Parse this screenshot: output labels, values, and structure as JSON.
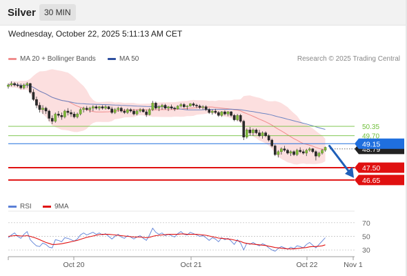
{
  "header": {
    "symbol": "Silver",
    "timeframe": "30 MIN",
    "datetime": "Wednesday, October 22, 2025 5:11:13 AM CET"
  },
  "legend": {
    "items": [
      {
        "label": "MA 20 + Bollinger Bands",
        "color": "#f08c8c"
      },
      {
        "label": "MA 50",
        "color": "#2d4e9e"
      }
    ],
    "credit": "Research © 2025 Trading Central"
  },
  "rsi_legend": {
    "items": [
      {
        "label": "RSI",
        "color": "#5b7fd6"
      },
      {
        "label": "9MA",
        "color": "#e01010"
      }
    ]
  },
  "chart_data": [
    {
      "type": "candlestick",
      "title": "Silver",
      "ylim": [
        45.5,
        54.3
      ],
      "x_ticks": [
        "Oct 20",
        "Oct 21",
        "Oct 22",
        "Nov 1"
      ],
      "current_price": 49.15,
      "levels": [
        {
          "value": 50.35,
          "label": "50.35",
          "kind": "resistance",
          "color": "#6fbf3a"
        },
        {
          "value": 49.7,
          "label": "49.70",
          "kind": "resistance",
          "color": "#6fbf3a"
        },
        {
          "value": 49.15,
          "label": "49.15",
          "kind": "pivot",
          "color": "#1f6fde"
        },
        {
          "value": 48.79,
          "label": "48.79",
          "kind": "last",
          "color": "#222222"
        },
        {
          "value": 47.5,
          "label": "47.50",
          "kind": "support",
          "color": "#e01010"
        },
        {
          "value": 46.65,
          "label": "46.65",
          "kind": "support",
          "color": "#e01010"
        }
      ],
      "forecast_arrow": {
        "from": 49.0,
        "to": 46.65,
        "direction": "down",
        "color": "#1f5fb8"
      },
      "candles": [
        [
          53.1,
          53.3,
          52.95,
          53.2
        ],
        [
          53.2,
          53.45,
          53.1,
          53.3
        ],
        [
          53.3,
          53.4,
          53.1,
          53.2
        ],
        [
          53.2,
          53.35,
          53.05,
          53.15
        ],
        [
          53.15,
          53.3,
          52.9,
          53.0
        ],
        [
          53.0,
          53.3,
          52.9,
          53.2
        ],
        [
          53.2,
          53.4,
          53.0,
          53.3
        ],
        [
          53.3,
          53.35,
          52.6,
          52.7
        ],
        [
          52.7,
          52.9,
          52.1,
          52.2
        ],
        [
          52.2,
          52.4,
          51.6,
          51.8
        ],
        [
          51.8,
          52.0,
          51.3,
          51.5
        ],
        [
          51.5,
          51.8,
          51.2,
          51.6
        ],
        [
          51.6,
          51.7,
          51.2,
          51.4
        ],
        [
          51.4,
          51.5,
          50.7,
          50.9
        ],
        [
          50.9,
          51.1,
          50.5,
          50.7
        ],
        [
          50.7,
          51.3,
          50.6,
          51.2
        ],
        [
          51.2,
          51.4,
          50.95,
          51.1
        ],
        [
          51.1,
          51.3,
          50.8,
          51.0
        ],
        [
          51.0,
          51.5,
          50.9,
          51.4
        ],
        [
          51.4,
          51.6,
          51.1,
          51.3
        ],
        [
          51.3,
          51.5,
          51.0,
          51.2
        ],
        [
          51.2,
          51.35,
          50.9,
          51.0
        ],
        [
          51.0,
          51.3,
          50.9,
          51.2
        ],
        [
          51.2,
          51.6,
          51.1,
          51.5
        ],
        [
          51.5,
          51.7,
          51.3,
          51.6
        ],
        [
          51.6,
          51.75,
          51.4,
          51.5
        ],
        [
          51.5,
          51.7,
          51.3,
          51.6
        ],
        [
          51.6,
          51.8,
          51.4,
          51.7
        ],
        [
          51.7,
          51.8,
          51.5,
          51.6
        ],
        [
          51.6,
          51.75,
          51.45,
          51.7
        ],
        [
          51.7,
          51.8,
          51.5,
          51.6
        ],
        [
          51.6,
          51.8,
          51.5,
          51.7
        ],
        [
          51.7,
          51.75,
          51.5,
          51.55
        ],
        [
          51.55,
          51.7,
          51.2,
          51.3
        ],
        [
          51.3,
          51.6,
          51.2,
          51.5
        ],
        [
          51.5,
          51.7,
          51.35,
          51.6
        ],
        [
          51.6,
          51.7,
          51.3,
          51.4
        ],
        [
          51.4,
          51.55,
          51.2,
          51.3
        ],
        [
          51.3,
          51.6,
          51.2,
          51.5
        ],
        [
          51.5,
          51.6,
          51.3,
          51.4
        ],
        [
          51.4,
          51.55,
          51.1,
          51.2
        ],
        [
          51.2,
          51.5,
          51.1,
          51.4
        ],
        [
          51.4,
          51.6,
          51.3,
          51.5
        ],
        [
          51.5,
          51.6,
          51.3,
          51.35
        ],
        [
          51.35,
          51.5,
          51.0,
          51.15
        ],
        [
          51.15,
          51.6,
          51.1,
          51.5
        ],
        [
          51.5,
          52.1,
          51.4,
          51.95
        ],
        [
          51.95,
          52.05,
          51.5,
          51.6
        ],
        [
          51.6,
          51.8,
          51.4,
          51.7
        ],
        [
          51.7,
          51.9,
          51.5,
          51.8
        ],
        [
          51.8,
          51.9,
          51.5,
          51.6
        ],
        [
          51.6,
          51.75,
          51.4,
          51.7
        ],
        [
          51.7,
          51.85,
          51.5,
          51.6
        ],
        [
          51.6,
          51.7,
          51.4,
          51.55
        ],
        [
          51.55,
          51.8,
          51.5,
          51.75
        ],
        [
          51.75,
          51.95,
          51.65,
          51.85
        ],
        [
          51.85,
          51.95,
          51.6,
          51.7
        ],
        [
          51.7,
          51.8,
          51.5,
          51.75
        ],
        [
          51.75,
          51.95,
          51.7,
          51.9
        ],
        [
          51.9,
          52.0,
          51.7,
          51.8
        ],
        [
          51.8,
          51.9,
          51.6,
          51.75
        ],
        [
          51.75,
          51.85,
          51.55,
          51.65
        ],
        [
          51.65,
          51.8,
          51.5,
          51.7
        ],
        [
          51.7,
          51.8,
          51.4,
          51.5
        ],
        [
          51.5,
          51.6,
          51.2,
          51.3
        ],
        [
          51.3,
          51.5,
          51.15,
          51.4
        ],
        [
          51.4,
          51.55,
          51.2,
          51.3
        ],
        [
          51.3,
          51.4,
          51.0,
          51.1
        ],
        [
          51.1,
          51.4,
          51.0,
          51.35
        ],
        [
          51.35,
          51.45,
          51.1,
          51.2
        ],
        [
          51.2,
          51.4,
          51.05,
          51.35
        ],
        [
          51.35,
          51.4,
          51.0,
          51.1
        ],
        [
          51.1,
          51.2,
          50.7,
          50.8
        ],
        [
          50.8,
          51.2,
          50.7,
          51.1
        ],
        [
          51.1,
          51.2,
          50.6,
          50.7
        ],
        [
          50.7,
          50.8,
          49.4,
          49.6
        ],
        [
          49.6,
          50.2,
          49.5,
          50.1
        ],
        [
          50.1,
          50.3,
          49.7,
          49.9
        ],
        [
          49.9,
          50.2,
          49.7,
          50.1
        ],
        [
          50.1,
          50.2,
          49.8,
          49.9
        ],
        [
          49.9,
          50.1,
          49.6,
          49.7
        ],
        [
          49.7,
          50.0,
          49.5,
          49.9
        ],
        [
          49.9,
          50.0,
          49.6,
          49.7
        ],
        [
          49.7,
          49.8,
          49.3,
          49.4
        ],
        [
          49.4,
          49.5,
          48.9,
          49.0
        ],
        [
          49.0,
          49.1,
          48.3,
          48.4
        ],
        [
          48.4,
          48.7,
          48.2,
          48.6
        ],
        [
          48.6,
          48.9,
          48.4,
          48.8
        ],
        [
          48.8,
          49.0,
          48.6,
          48.7
        ],
        [
          48.7,
          48.8,
          48.4,
          48.5
        ],
        [
          48.5,
          48.7,
          48.3,
          48.6
        ],
        [
          48.6,
          48.7,
          48.3,
          48.4
        ],
        [
          48.4,
          48.8,
          48.3,
          48.7
        ],
        [
          48.7,
          48.9,
          48.5,
          48.6
        ],
        [
          48.6,
          48.75,
          48.4,
          48.5
        ],
        [
          48.5,
          48.8,
          48.3,
          48.7
        ],
        [
          48.7,
          48.9,
          48.6,
          48.8
        ],
        [
          48.8,
          48.85,
          48.5,
          48.6
        ],
        [
          48.6,
          48.7,
          48.0,
          48.3
        ],
        [
          48.3,
          48.6,
          48.2,
          48.5
        ],
        [
          48.5,
          48.8,
          48.4,
          48.7
        ],
        [
          48.7,
          48.95,
          48.6,
          48.9
        ]
      ]
    },
    {
      "type": "line",
      "title": "RSI",
      "ylim": [
        20,
        80
      ],
      "y_ticks": [
        70,
        50,
        30
      ],
      "series": [
        {
          "name": "RSI",
          "color": "#5b7fd6",
          "values": [
            48,
            52,
            55,
            50,
            47,
            53,
            57,
            45,
            40,
            36,
            35,
            40,
            38,
            34,
            33,
            45,
            44,
            42,
            48,
            47,
            45,
            43,
            46,
            52,
            55,
            52,
            54,
            56,
            53,
            55,
            52,
            54,
            50,
            46,
            50,
            53,
            49,
            47,
            51,
            49,
            46,
            49,
            51,
            47,
            44,
            52,
            62,
            56,
            53,
            55,
            51,
            53,
            51,
            49,
            54,
            57,
            53,
            52,
            56,
            54,
            52,
            50,
            51,
            48,
            44,
            48,
            46,
            42,
            48,
            45,
            47,
            43,
            38,
            45,
            40,
            30,
            40,
            38,
            41,
            38,
            36,
            39,
            37,
            33,
            30,
            28,
            32,
            35,
            33,
            31,
            34,
            32,
            36,
            35,
            33,
            38,
            41,
            37,
            33,
            38,
            43,
            48
          ]
        },
        {
          "name": "9MA",
          "color": "#e01010",
          "values": [
            50,
            50.5,
            51,
            51,
            50.5,
            50.5,
            51,
            50,
            48.5,
            47,
            45,
            43,
            41,
            39.5,
            38,
            38,
            38.5,
            39,
            40,
            41,
            42,
            43,
            44,
            45.5,
            47,
            48.5,
            49.5,
            50.5,
            51.5,
            52.5,
            53,
            53,
            53,
            52.5,
            52,
            51.5,
            51,
            50.5,
            50,
            49.5,
            49,
            49,
            49,
            48.5,
            48,
            48.5,
            50,
            51,
            51.5,
            52,
            52.5,
            53,
            53,
            53,
            53,
            53.5,
            53.5,
            53,
            53,
            53,
            53,
            52.5,
            52,
            51.5,
            50.5,
            49.5,
            48.5,
            47.5,
            47,
            46.5,
            46,
            45.5,
            44.5,
            43.5,
            42.5,
            40.5,
            39.5,
            39,
            38.5,
            38,
            37.5,
            37,
            36.5,
            35.5,
            34.5,
            33.5,
            33,
            32.5,
            32,
            31.5,
            31.5,
            31.5,
            32,
            32.5,
            33,
            33.5,
            34.5,
            35,
            35,
            35.5,
            36,
            37.5
          ]
        }
      ]
    }
  ]
}
